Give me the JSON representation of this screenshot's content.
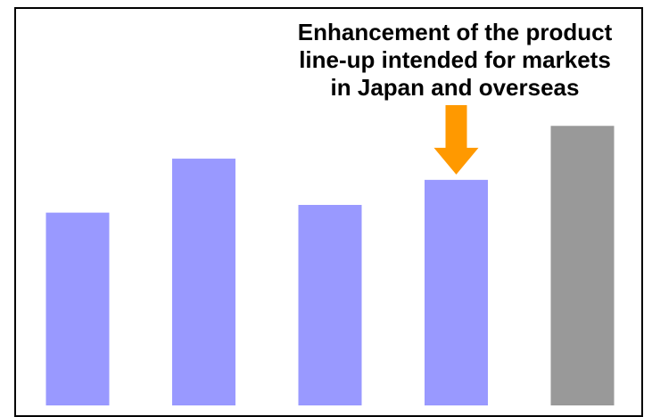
{
  "chart_data": {
    "type": "bar",
    "categories": [
      "",
      "",
      "",
      "",
      ""
    ],
    "values": [
      100,
      128,
      104,
      117,
      145
    ],
    "bar_colors": [
      "#9999ff",
      "#9999ff",
      "#9999ff",
      "#9999ff",
      "#999999"
    ],
    "title": "",
    "xlabel": "",
    "ylabel": "",
    "ylim": [
      0,
      220
    ],
    "grid": false,
    "annotation": {
      "text": "Enhancement of the product\nline-up intended for markets\nin Japan and overseas",
      "target_index": 3,
      "arrow_color": "#ff9900"
    }
  }
}
